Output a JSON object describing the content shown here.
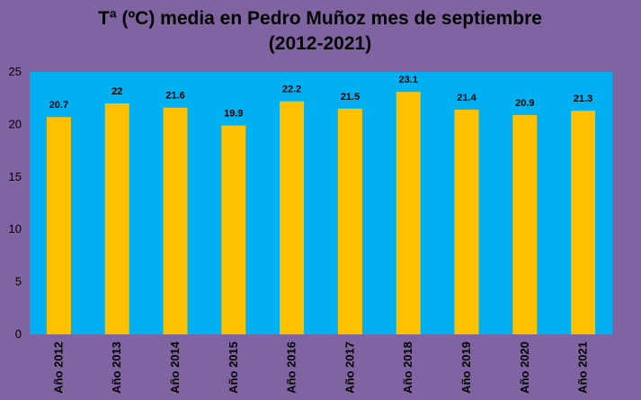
{
  "chart_data": {
    "type": "bar",
    "title_line1": "Tª (ºC) media en Pedro Muñoz mes de septiembre",
    "title_line2": "(2012-2021)",
    "categories": [
      "Año 2012",
      "Año 2013",
      "Año 2014",
      "Año 2015",
      "Año 2016",
      "Año 2017",
      "Año 2018",
      "Año 2019",
      "Año 2020",
      "Año 2021"
    ],
    "values": [
      20.7,
      22,
      21.6,
      19.9,
      22.2,
      21.5,
      23.1,
      21.4,
      20.9,
      21.3
    ],
    "data_labels": [
      "20.7",
      "22",
      "21.6",
      "19.9",
      "22.2",
      "21.5",
      "23.1",
      "21.4",
      "20.9",
      "21.3"
    ],
    "ylim": [
      0,
      25
    ],
    "yticks": [
      "0",
      "5",
      "10",
      "15",
      "20",
      "25"
    ],
    "grid": false,
    "legend": "none"
  },
  "colors": {
    "background": "#8064a2",
    "plot_area": "#00b0f0",
    "bar": "#ffc000"
  }
}
